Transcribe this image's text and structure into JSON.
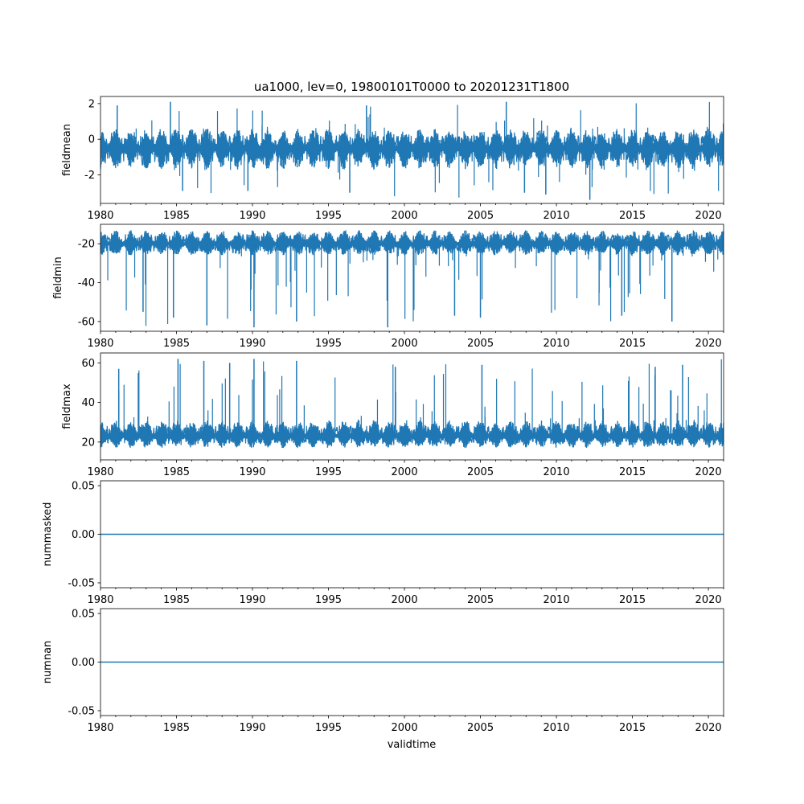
{
  "title": "ua1000, lev=0, 19800101T0000 to 20201231T1800",
  "xlabel": "validtime",
  "colors": {
    "series": "#1f77b4",
    "axis": "#000000",
    "background": "#ffffff"
  },
  "chart_data": [
    {
      "type": "line",
      "ylabel": "fieldmean",
      "xlim": [
        1980,
        2021
      ],
      "ylim": [
        -3.6,
        2.4
      ],
      "x_ticks": [
        "1980",
        "1985",
        "1990",
        "1995",
        "2000",
        "2005",
        "2010",
        "2015",
        "2020"
      ],
      "y_ticks": [
        "-2",
        "0",
        "2"
      ],
      "y_tick_values": [
        -2,
        0,
        2
      ],
      "grid": false,
      "series": [
        {
          "values_summary": {
            "baseline": -0.5,
            "typical_low": -1.7,
            "typical_high": 0.6,
            "spikes_high": [
              [
                1984.6,
                2.1
              ],
              [
                2006.7,
                2.1
              ],
              [
                1981.1,
                1.9
              ],
              [
                1997.5,
                1.9
              ]
            ],
            "spikes_low": [
              [
                2012.2,
                -3.4
              ],
              [
                2009.3,
                -3.1
              ],
              [
                2007.9,
                -3.0
              ],
              [
                1996.4,
                -3.0
              ],
              [
                1985.4,
                -2.9
              ],
              [
                1989.7,
                -2.9
              ]
            ]
          }
        }
      ]
    },
    {
      "type": "line",
      "ylabel": "fieldmin",
      "xlim": [
        1980,
        2021
      ],
      "ylim": [
        -65,
        -10
      ],
      "x_ticks": [
        "1980",
        "1985",
        "1990",
        "1995",
        "2000",
        "2005",
        "2010",
        "2015",
        "2020"
      ],
      "y_ticks": [
        "-60",
        "-40",
        "-20"
      ],
      "y_tick_values": [
        -60,
        -40,
        -20
      ],
      "grid": false,
      "series": [
        {
          "values_summary": {
            "baseline": -20,
            "typical_low": -26,
            "typical_high": -13,
            "spikes_low": [
              [
                1987.0,
                -62
              ],
              [
                1990.1,
                -63
              ],
              [
                1998.9,
                -63
              ],
              [
                1984.8,
                -58
              ],
              [
                1992.9,
                -60
              ],
              [
                2005.0,
                -58
              ],
              [
                2017.6,
                -60
              ],
              [
                1982.8,
                -55
              ],
              [
                2003.3,
                -57
              ],
              [
                2014.3,
                -57
              ]
            ]
          }
        }
      ]
    },
    {
      "type": "line",
      "ylabel": "fieldmax",
      "xlim": [
        1980,
        2021
      ],
      "ylim": [
        11,
        65
      ],
      "x_ticks": [
        "1980",
        "1985",
        "1990",
        "1995",
        "2000",
        "2005",
        "2010",
        "2015",
        "2020"
      ],
      "y_ticks": [
        "20",
        "40",
        "60"
      ],
      "y_tick_values": [
        20,
        40,
        60
      ],
      "grid": false,
      "series": [
        {
          "values_summary": {
            "baseline": 23,
            "typical_low": 17,
            "typical_high": 31,
            "spikes_high": [
              [
                1985.1,
                62
              ],
              [
                1990.1,
                62
              ],
              [
                1986.8,
                61
              ],
              [
                1988.5,
                60
              ],
              [
                1992.9,
                61
              ],
              [
                2005.1,
                59
              ],
              [
                2018.3,
                59
              ],
              [
                1981.2,
                57
              ],
              [
                1999.4,
                58
              ],
              [
                2016.5,
                58
              ]
            ]
          }
        }
      ]
    },
    {
      "type": "line",
      "ylabel": "nummasked",
      "xlim": [
        1980,
        2021
      ],
      "ylim": [
        -0.055,
        0.055
      ],
      "x_ticks": [
        "1980",
        "1985",
        "1990",
        "1995",
        "2000",
        "2005",
        "2010",
        "2015",
        "2020"
      ],
      "y_ticks": [
        "-0.05",
        "0.00",
        "0.05"
      ],
      "y_tick_values": [
        -0.05,
        0,
        0.05
      ],
      "grid": false,
      "series": [
        {
          "x": [
            1980,
            2021
          ],
          "values": [
            0,
            0
          ]
        }
      ]
    },
    {
      "type": "line",
      "ylabel": "numnan",
      "xlim": [
        1980,
        2021
      ],
      "ylim": [
        -0.055,
        0.055
      ],
      "x_ticks": [
        "1980",
        "1985",
        "1990",
        "1995",
        "2000",
        "2005",
        "2010",
        "2015",
        "2020"
      ],
      "y_ticks": [
        "-0.05",
        "0.00",
        "0.05"
      ],
      "y_tick_values": [
        -0.05,
        0,
        0.05
      ],
      "grid": false,
      "series": [
        {
          "x": [
            1980,
            2021
          ],
          "values": [
            0,
            0
          ]
        }
      ]
    }
  ]
}
